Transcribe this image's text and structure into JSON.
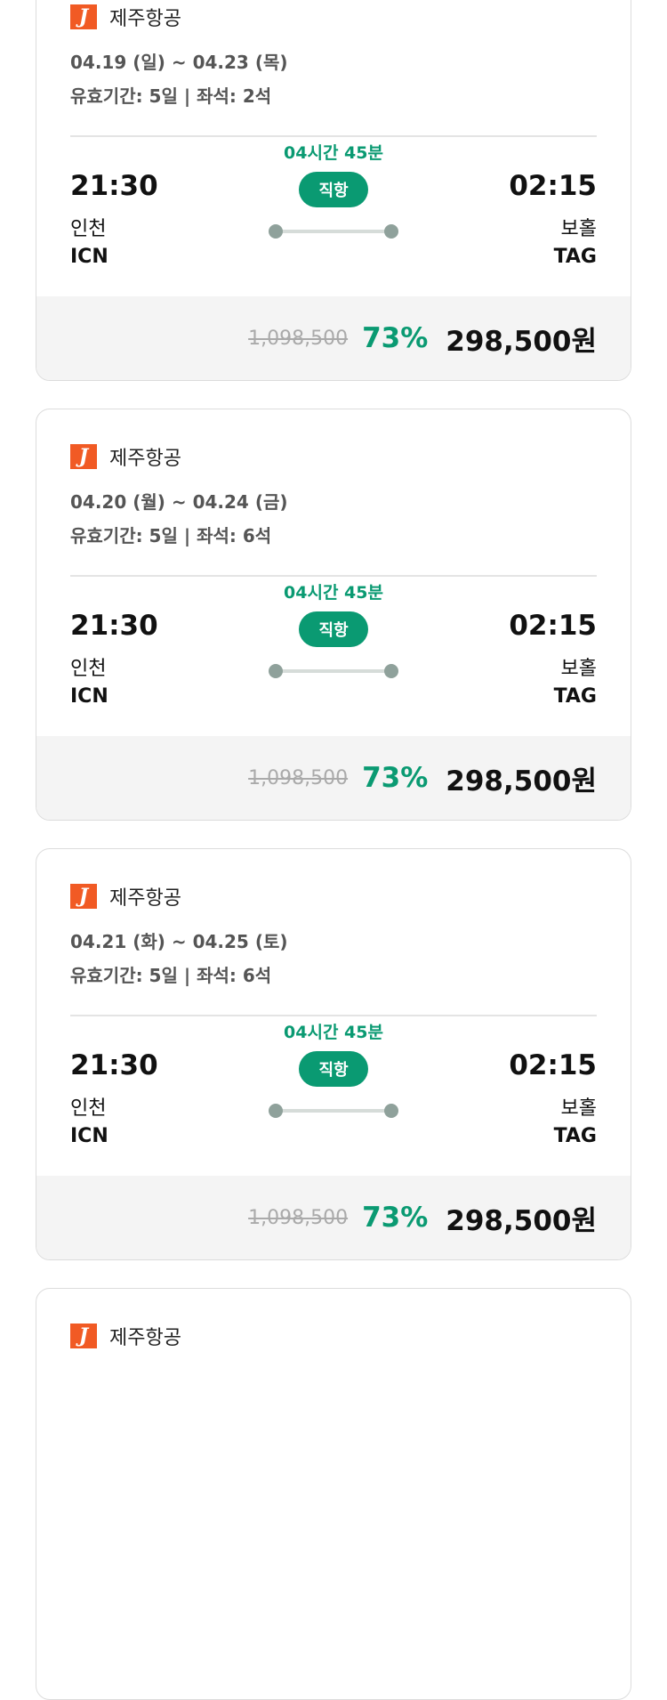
{
  "colors": {
    "accent": "#0a9a72",
    "logo": "#f15a24"
  },
  "cards": [
    {
      "airline": "제주항공",
      "logo_letter": "J",
      "dates": "04.19 (일) ~ 04.23 (목)",
      "validity": "유효기간: 5일 | 좌석: 2석",
      "dep_time": "21:30",
      "dep_city": "인천",
      "dep_code": "ICN",
      "duration": "04시간 45분",
      "type": "직항",
      "arr_time": "02:15",
      "arr_city": "보홀",
      "arr_code": "TAG",
      "original_price": "1,098,500",
      "discount": "73%",
      "price": "298,500원"
    },
    {
      "airline": "제주항공",
      "logo_letter": "J",
      "dates": "04.20 (월) ~ 04.24 (금)",
      "validity": "유효기간: 5일 | 좌석: 6석",
      "dep_time": "21:30",
      "dep_city": "인천",
      "dep_code": "ICN",
      "duration": "04시간 45분",
      "type": "직항",
      "arr_time": "02:15",
      "arr_city": "보홀",
      "arr_code": "TAG",
      "original_price": "1,098,500",
      "discount": "73%",
      "price": "298,500원"
    },
    {
      "airline": "제주항공",
      "logo_letter": "J",
      "dates": "04.21 (화) ~ 04.25 (토)",
      "validity": "유효기간: 5일 | 좌석: 6석",
      "dep_time": "21:30",
      "dep_city": "인천",
      "dep_code": "ICN",
      "duration": "04시간 45분",
      "type": "직항",
      "arr_time": "02:15",
      "arr_city": "보홀",
      "arr_code": "TAG",
      "original_price": "1,098,500",
      "discount": "73%",
      "price": "298,500원"
    },
    {
      "airline": "제주항공",
      "logo_letter": "J"
    }
  ]
}
